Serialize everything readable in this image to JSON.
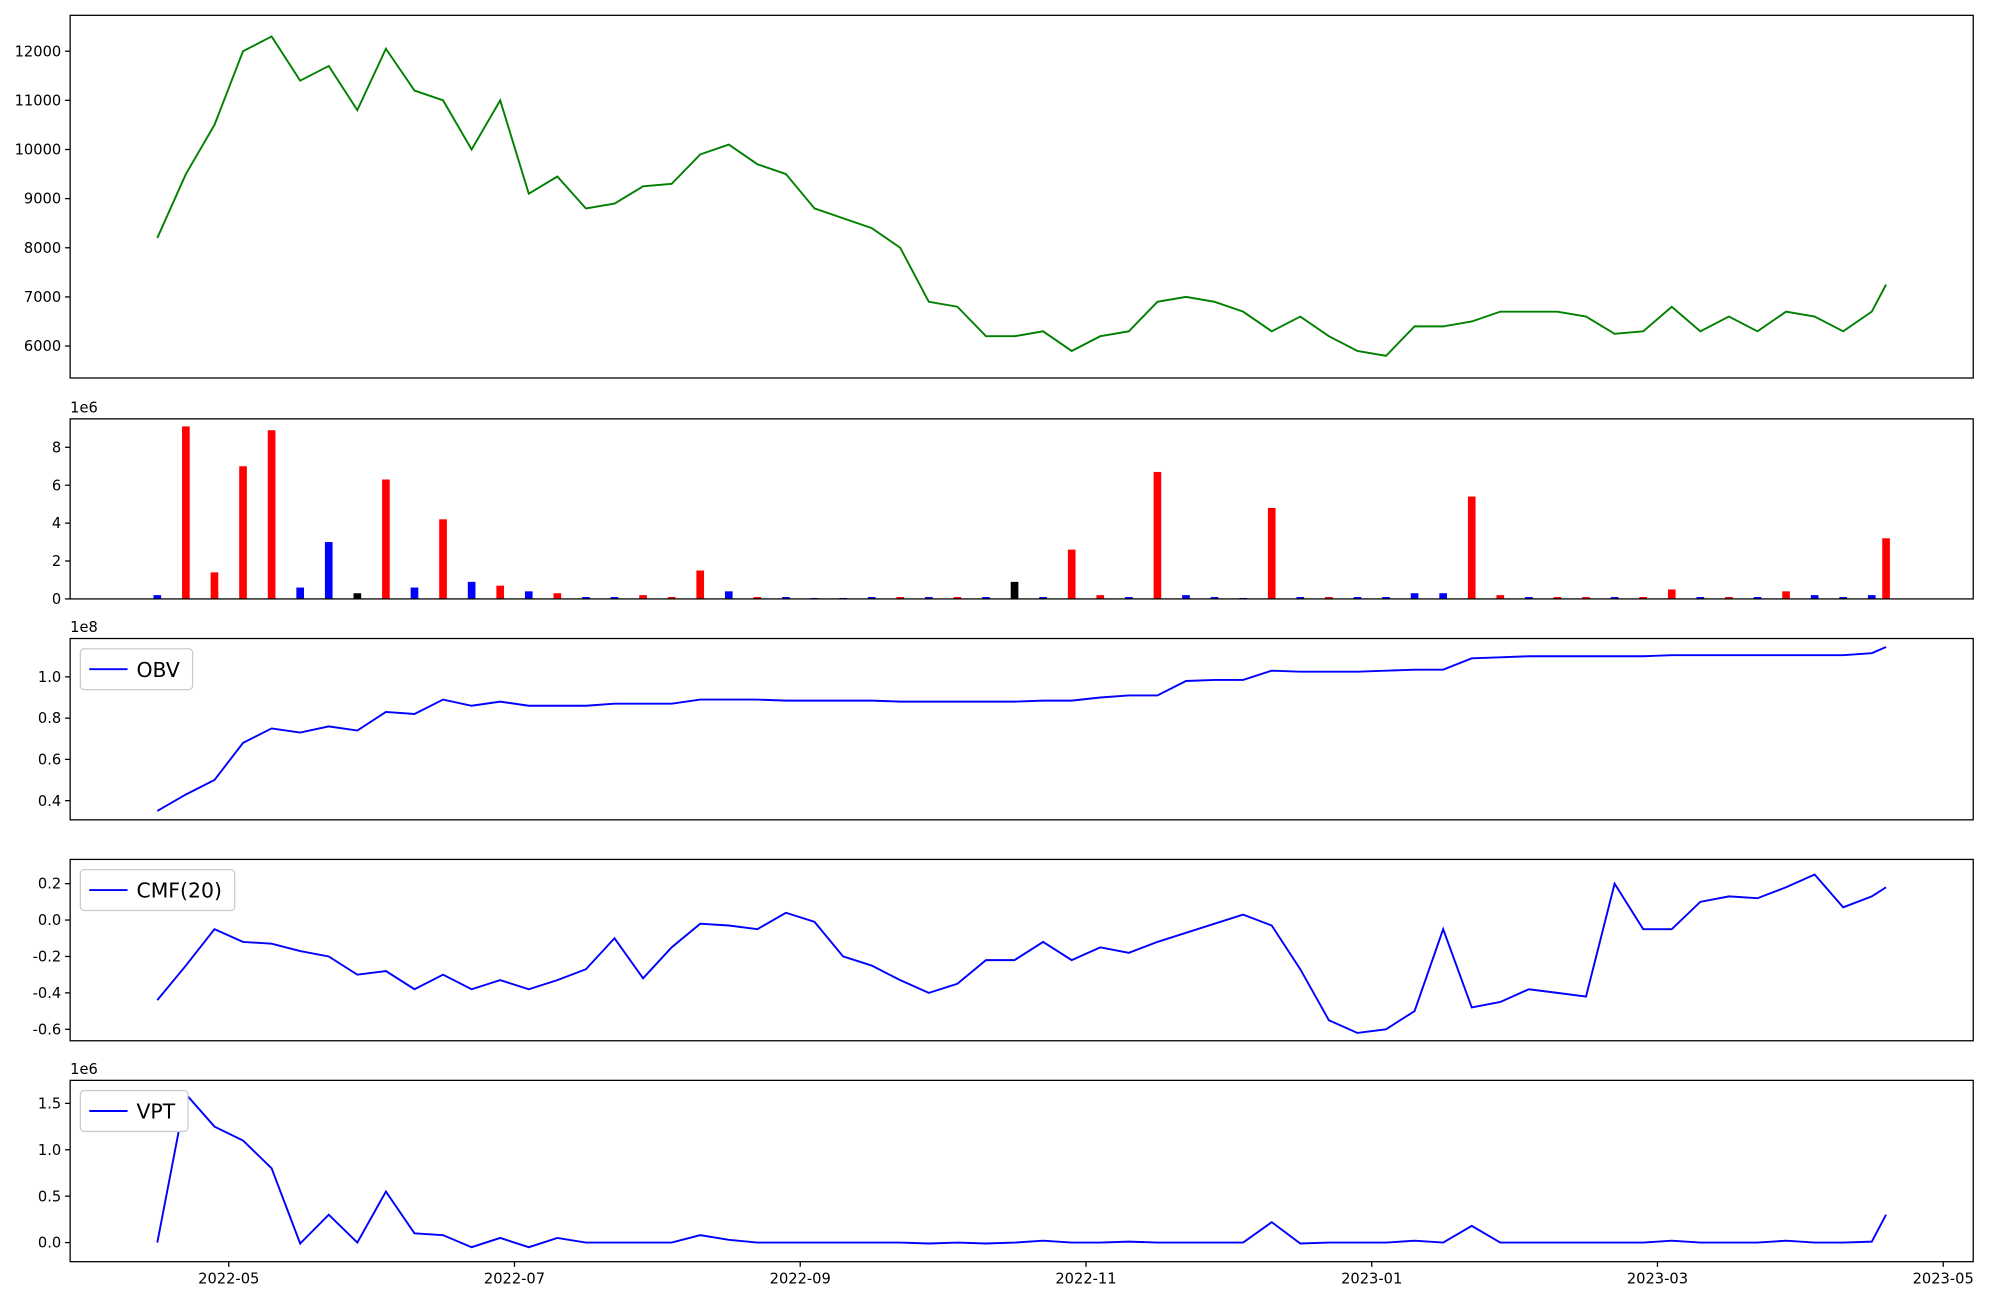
{
  "chart_data": [
    {
      "type": "line",
      "xlim": [
        3.89,
        17.21
      ],
      "ylim": [
        5350,
        12730
      ],
      "yticks": [
        6000,
        7000,
        8000,
        9000,
        10000,
        11000,
        12000
      ],
      "x": [
        4.5,
        4.7,
        4.9,
        5.1,
        5.3,
        5.5,
        5.7,
        5.9,
        6.1,
        6.3,
        6.5,
        6.7,
        6.9,
        7.1,
        7.3,
        7.5,
        7.7,
        7.9,
        8.1,
        8.3,
        8.5,
        8.7,
        8.9,
        9.1,
        9.3,
        9.5,
        9.7,
        9.9,
        10.1,
        10.3,
        10.5,
        10.7,
        10.9,
        11.1,
        11.3,
        11.5,
        11.7,
        11.9,
        12.1,
        12.3,
        12.5,
        12.7,
        12.9,
        13.1,
        13.3,
        13.5,
        13.7,
        13.9,
        14.1,
        14.3,
        14.5,
        14.7,
        14.9,
        15.1,
        15.3,
        15.5,
        15.7,
        15.9,
        16.1,
        16.3,
        16.5,
        16.6
      ],
      "series": [
        {
          "color": "#008000",
          "values": [
            8200,
            9500,
            10500,
            12000,
            12300,
            11400,
            11700,
            10800,
            12050,
            11200,
            11000,
            10000,
            11000,
            9100,
            9450,
            8800,
            8900,
            9250,
            9300,
            9900,
            10100,
            9700,
            9500,
            8800,
            8600,
            8400,
            8000,
            6900,
            6800,
            6200,
            6200,
            6300,
            5900,
            6200,
            6300,
            6900,
            7000,
            6900,
            6700,
            6300,
            6600,
            6200,
            5900,
            5800,
            6400,
            6400,
            6500,
            6700,
            6700,
            6700,
            6600,
            6250,
            6300,
            6800,
            6300,
            6600,
            6300,
            6700,
            6600,
            6300,
            6700,
            7250
          ]
        }
      ]
    },
    {
      "type": "bar",
      "xlim": [
        3.89,
        17.21
      ],
      "ylim": [
        0,
        9500000
      ],
      "y_offset_label": "1e6",
      "yticks": [
        {
          "value": 0,
          "label": "0"
        },
        {
          "value": 2000000,
          "label": "2"
        },
        {
          "value": 4000000,
          "label": "4"
        },
        {
          "value": 6000000,
          "label": "6"
        },
        {
          "value": 8000000,
          "label": "8"
        }
      ],
      "x": [
        4.5,
        4.7,
        4.9,
        5.1,
        5.3,
        5.5,
        5.7,
        5.9,
        6.1,
        6.3,
        6.5,
        6.7,
        6.9,
        7.1,
        7.3,
        7.5,
        7.7,
        7.9,
        8.1,
        8.3,
        8.5,
        8.7,
        8.9,
        9.1,
        9.3,
        9.5,
        9.7,
        9.9,
        10.1,
        10.3,
        10.5,
        10.7,
        10.9,
        11.1,
        11.3,
        11.5,
        11.7,
        11.9,
        12.1,
        12.3,
        12.5,
        12.7,
        12.9,
        13.1,
        13.3,
        13.5,
        13.7,
        13.9,
        14.1,
        14.3,
        14.5,
        14.7,
        14.9,
        15.1,
        15.3,
        15.5,
        15.7,
        15.9,
        16.1,
        16.3,
        16.5,
        16.6
      ],
      "values": [
        200000,
        9100000,
        1400000,
        7000000,
        8900000,
        600000,
        3000000,
        300000,
        6300000,
        600000,
        4200000,
        900000,
        700000,
        400000,
        300000,
        100000,
        100000,
        200000,
        100000,
        1500000,
        400000,
        100000,
        100000,
        50000,
        50000,
        100000,
        100000,
        100000,
        100000,
        100000,
        900000,
        100000,
        2600000,
        200000,
        100000,
        6700000,
        200000,
        100000,
        50000,
        4800000,
        100000,
        100000,
        100000,
        100000,
        300000,
        300000,
        5400000,
        200000,
        100000,
        100000,
        100000,
        100000,
        100000,
        500000,
        100000,
        100000,
        100000,
        400000,
        200000,
        100000,
        200000,
        3200000
      ],
      "colors": [
        "#0000ff",
        "#ff0000",
        "#ff0000",
        "#ff0000",
        "#ff0000",
        "#0000ff",
        "#0000ff",
        "#000000",
        "#ff0000",
        "#0000ff",
        "#ff0000",
        "#0000ff",
        "#ff0000",
        "#0000ff",
        "#ff0000",
        "#0000ff",
        "#0000ff",
        "#ff0000",
        "#ff0000",
        "#ff0000",
        "#0000ff",
        "#ff0000",
        "#0000ff",
        "#0000ff",
        "#0000ff",
        "#0000ff",
        "#ff0000",
        "#0000ff",
        "#ff0000",
        "#0000ff",
        "#000000",
        "#0000ff",
        "#ff0000",
        "#ff0000",
        "#0000ff",
        "#ff0000",
        "#0000ff",
        "#0000ff",
        "#0000ff",
        "#ff0000",
        "#0000ff",
        "#ff0000",
        "#0000ff",
        "#0000ff",
        "#0000ff",
        "#0000ff",
        "#ff0000",
        "#ff0000",
        "#0000ff",
        "#ff0000",
        "#ff0000",
        "#0000ff",
        "#ff0000",
        "#ff0000",
        "#0000ff",
        "#ff0000",
        "#0000ff",
        "#ff0000",
        "#0000ff",
        "#0000ff",
        "#0000ff",
        "#ff0000"
      ]
    },
    {
      "type": "line",
      "xlim": [
        3.89,
        17.21
      ],
      "ylim": [
        30700000,
        118600000
      ],
      "y_offset_label": "1e8",
      "legend": "upper left",
      "yticks": [
        {
          "value": 40000000,
          "label": "0.4"
        },
        {
          "value": 60000000,
          "label": "0.6"
        },
        {
          "value": 80000000,
          "label": "0.8"
        },
        {
          "value": 100000000,
          "label": "1.0"
        }
      ],
      "x": [
        4.5,
        4.7,
        4.9,
        5.1,
        5.3,
        5.5,
        5.7,
        5.9,
        6.1,
        6.3,
        6.5,
        6.7,
        6.9,
        7.1,
        7.3,
        7.5,
        7.7,
        7.9,
        8.1,
        8.3,
        8.5,
        8.7,
        8.9,
        9.1,
        9.3,
        9.5,
        9.7,
        9.9,
        10.1,
        10.3,
        10.5,
        10.7,
        10.9,
        11.1,
        11.3,
        11.5,
        11.7,
        11.9,
        12.1,
        12.3,
        12.5,
        12.7,
        12.9,
        13.1,
        13.3,
        13.5,
        13.7,
        13.9,
        14.1,
        14.3,
        14.5,
        14.7,
        14.9,
        15.1,
        15.3,
        15.5,
        15.7,
        15.9,
        16.1,
        16.3,
        16.5,
        16.6
      ],
      "series": [
        {
          "name": "OBV",
          "color": "#0000ff",
          "values": [
            35000000,
            43000000,
            50000000,
            68000000,
            75000000,
            73000000,
            76000000,
            74000000,
            83000000,
            82000000,
            89000000,
            86000000,
            88000000,
            86000000,
            86000000,
            86000000,
            87000000,
            87000000,
            87000000,
            89000000,
            89000000,
            89000000,
            88500000,
            88500000,
            88500000,
            88500000,
            88000000,
            88000000,
            88000000,
            88000000,
            88000000,
            88500000,
            88500000,
            90000000,
            91000000,
            91000000,
            98000000,
            98500000,
            98500000,
            103000000,
            102500000,
            102500000,
            102500000,
            103000000,
            103500000,
            103500000,
            109000000,
            109500000,
            110000000,
            110000000,
            110000000,
            110000000,
            110000000,
            110500000,
            110500000,
            110500000,
            110500000,
            110500000,
            110500000,
            110500000,
            111500000,
            114500000
          ]
        }
      ]
    },
    {
      "type": "line",
      "xlim": [
        3.89,
        17.21
      ],
      "ylim": [
        -0.663,
        0.333
      ],
      "legend": "upper left",
      "yticks": [
        -0.6,
        -0.4,
        -0.2,
        {
          "value": 0,
          "label": "0.0"
        },
        0.2
      ],
      "x": [
        4.5,
        4.7,
        4.9,
        5.1,
        5.3,
        5.5,
        5.7,
        5.9,
        6.1,
        6.3,
        6.5,
        6.7,
        6.9,
        7.1,
        7.3,
        7.5,
        7.7,
        7.9,
        8.1,
        8.3,
        8.5,
        8.7,
        8.9,
        9.1,
        9.3,
        9.5,
        9.7,
        9.9,
        10.1,
        10.3,
        10.5,
        10.7,
        10.9,
        11.1,
        11.3,
        11.5,
        11.7,
        11.9,
        12.1,
        12.3,
        12.5,
        12.7,
        12.9,
        13.1,
        13.3,
        13.5,
        13.7,
        13.9,
        14.1,
        14.3,
        14.5,
        14.7,
        14.9,
        15.1,
        15.3,
        15.5,
        15.7,
        15.9,
        16.1,
        16.3,
        16.5,
        16.6
      ],
      "series": [
        {
          "name": "CMF(20)",
          "color": "#0000ff",
          "values": [
            -0.44,
            -0.25,
            -0.05,
            -0.12,
            -0.13,
            -0.17,
            -0.2,
            -0.3,
            -0.28,
            -0.38,
            -0.3,
            -0.38,
            -0.33,
            -0.38,
            -0.33,
            -0.27,
            -0.1,
            -0.32,
            -0.15,
            -0.02,
            -0.03,
            -0.05,
            0.04,
            -0.01,
            -0.2,
            -0.25,
            -0.33,
            -0.4,
            -0.35,
            -0.22,
            -0.22,
            -0.12,
            -0.22,
            -0.15,
            -0.18,
            -0.12,
            -0.07,
            -0.02,
            0.03,
            -0.03,
            -0.27,
            -0.55,
            -0.62,
            -0.6,
            -0.5,
            -0.05,
            -0.48,
            -0.45,
            -0.38,
            -0.4,
            -0.42,
            0.2,
            -0.05,
            -0.05,
            0.1,
            0.13,
            0.12,
            0.18,
            0.25,
            0.07,
            0.13,
            0.18
          ]
        }
      ]
    },
    {
      "type": "line",
      "xlim": [
        3.89,
        17.21
      ],
      "ylim": [
        -206000,
        1748000
      ],
      "y_offset_label": "1e6",
      "legend": "upper left",
      "yticks": [
        {
          "value": 0,
          "label": "0.0"
        },
        {
          "value": 500000,
          "label": "0.5"
        },
        {
          "value": 1000000,
          "label": "1.0"
        },
        {
          "value": 1500000,
          "label": "1.5"
        }
      ],
      "xticks": [
        {
          "value": 5,
          "label": "2022-05"
        },
        {
          "value": 7,
          "label": "2022-07"
        },
        {
          "value": 9,
          "label": "2022-09"
        },
        {
          "value": 11,
          "label": "2022-11"
        },
        {
          "value": 13,
          "label": "2023-01"
        },
        {
          "value": 15,
          "label": "2023-03"
        },
        {
          "value": 17,
          "label": "2023-05"
        }
      ],
      "x": [
        4.5,
        4.7,
        4.9,
        5.1,
        5.3,
        5.5,
        5.7,
        5.9,
        6.1,
        6.3,
        6.5,
        6.7,
        6.9,
        7.1,
        7.3,
        7.5,
        7.7,
        7.9,
        8.1,
        8.3,
        8.5,
        8.7,
        8.9,
        9.1,
        9.3,
        9.5,
        9.7,
        9.9,
        10.1,
        10.3,
        10.5,
        10.7,
        10.9,
        11.1,
        11.3,
        11.5,
        11.7,
        11.9,
        12.1,
        12.3,
        12.5,
        12.7,
        12.9,
        13.1,
        13.3,
        13.5,
        13.7,
        13.9,
        14.1,
        14.3,
        14.5,
        14.7,
        14.9,
        15.1,
        15.3,
        15.5,
        15.7,
        15.9,
        16.1,
        16.3,
        16.5,
        16.6
      ],
      "series": [
        {
          "name": "VPT",
          "color": "#0000ff",
          "values": [
            0,
            1600000,
            1250000,
            1100000,
            800000,
            -10000,
            300000,
            0,
            550000,
            100000,
            80000,
            -50000,
            50000,
            -50000,
            50000,
            0,
            0,
            0,
            0,
            80000,
            30000,
            0,
            0,
            0,
            0,
            0,
            0,
            -10000,
            0,
            -10000,
            0,
            20000,
            0,
            0,
            10000,
            0,
            0,
            0,
            0,
            220000,
            -10000,
            0,
            0,
            0,
            20000,
            0,
            180000,
            0,
            0,
            0,
            0,
            0,
            0,
            20000,
            0,
            0,
            0,
            20000,
            0,
            0,
            10000,
            300000
          ]
        }
      ]
    }
  ]
}
